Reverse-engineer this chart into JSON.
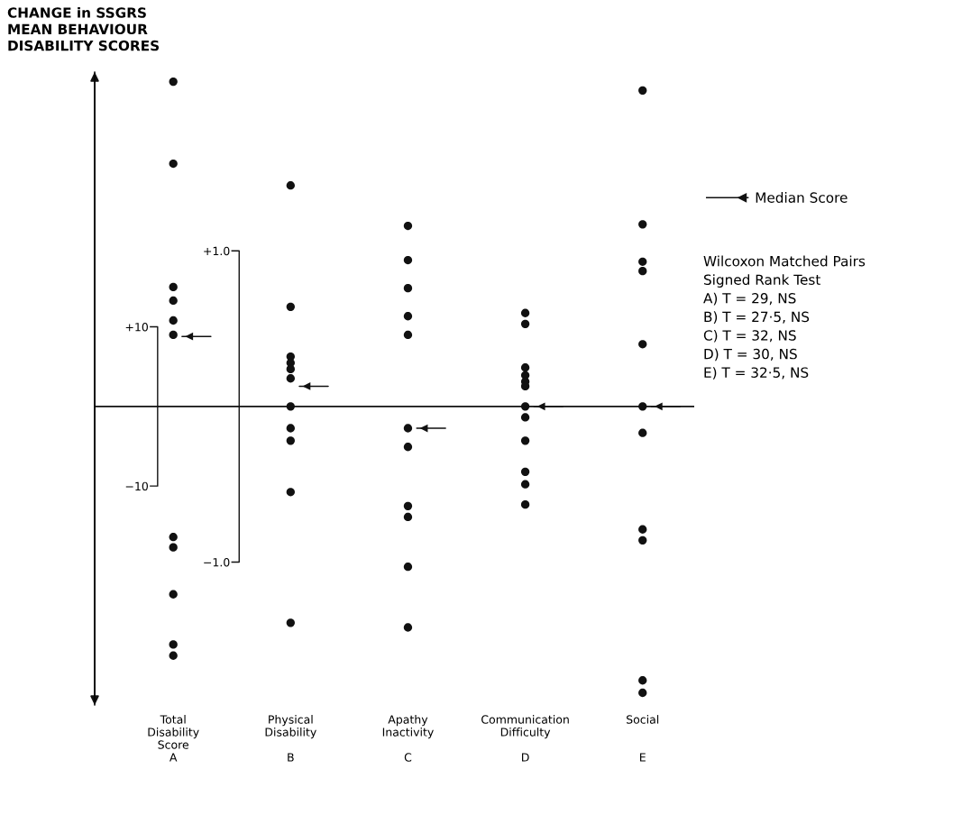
{
  "chart_data": {
    "type": "scatter",
    "ylabel": "CHANGE in SSGRS\nMEAN BEHAVIOUR\nDISABILITY SCORES",
    "categories": [
      "Total\nDisability\nScore\nA",
      "Physical\nDisability\n\nB",
      "Apathy\nInactivity\n\nC",
      "Communication\nDifficulty\n\nD",
      "Social\n\n\nE"
    ],
    "ylim": [
      -37.5,
      42
    ],
    "yticks": [
      {
        "value": 10,
        "label": "+10"
      },
      {
        "value": -10,
        "label": "−10"
      }
    ],
    "y2lim": [
      -1.918,
      2.148
    ],
    "y2ticks": [
      {
        "value": 1.0,
        "label": "+1.0"
      },
      {
        "value": -1.0,
        "label": "−1.0"
      }
    ],
    "marker": "circle",
    "legend": "top right",
    "series": [
      {
        "color": "#111111",
        "x": [
          "Total\nDisability\nScore\nA",
          "Total\nDisability\nScore\nA",
          "Total\nDisability\nScore\nA",
          "Total\nDisability\nScore\nA",
          "Total\nDisability\nScore\nA",
          "Total\nDisability\nScore\nA",
          "Total\nDisability\nScore\nA",
          "Total\nDisability\nScore\nA",
          "Total\nDisability\nScore\nA",
          "Total\nDisability\nScore\nA",
          "Total\nDisability\nScore\nA"
        ],
        "values": [
          40.8,
          30.5,
          15.0,
          13.3,
          10.8,
          9.0,
          -16.4,
          -17.7,
          -23.6,
          -29.9,
          -31.3
        ]
      },
      {
        "color": "#111111",
        "axis": "y2",
        "x": [
          "Physical\nDisability\n\nB",
          "Physical\nDisability\n\nB",
          "Physical\nDisability\n\nB",
          "Physical\nDisability\n\nB",
          "Physical\nDisability\n\nB",
          "Physical\nDisability\n\nB",
          "Physical\nDisability\n\nB",
          "Physical\nDisability\n\nB",
          "Physical\nDisability\n\nB",
          "Physical\nDisability\n\nB",
          "Physical\nDisability\n\nB"
        ],
        "values": [
          1.42,
          0.64,
          0.32,
          0.28,
          0.24,
          0.18,
          0.0,
          -0.14,
          -0.22,
          -0.55,
          -1.39
        ]
      },
      {
        "color": "#111111",
        "axis": "y2",
        "x": [
          "Apathy\nInactivity\n\nC",
          "Apathy\nInactivity\n\nC",
          "Apathy\nInactivity\n\nC",
          "Apathy\nInactivity\n\nC",
          "Apathy\nInactivity\n\nC",
          "Apathy\nInactivity\n\nC",
          "Apathy\nInactivity\n\nC",
          "Apathy\nInactivity\n\nC",
          "Apathy\nInactivity\n\nC",
          "Apathy\nInactivity\n\nC",
          "Apathy\nInactivity\n\nC"
        ],
        "values": [
          1.16,
          0.94,
          0.76,
          0.58,
          0.46,
          -0.14,
          -0.26,
          -0.64,
          -0.71,
          -1.03,
          -1.42
        ]
      },
      {
        "color": "#111111",
        "axis": "y2",
        "x": [
          "Communication\nDifficulty\n\nD",
          "Communication\nDifficulty\n\nD",
          "Communication\nDifficulty\n\nD",
          "Communication\nDifficulty\n\nD",
          "Communication\nDifficulty\n\nD",
          "Communication\nDifficulty\n\nD",
          "Communication\nDifficulty\n\nD",
          "Communication\nDifficulty\n\nD",
          "Communication\nDifficulty\n\nD",
          "Communication\nDifficulty\n\nD",
          "Communication\nDifficulty\n\nD",
          "Communication\nDifficulty\n\nD"
        ],
        "values": [
          0.6,
          0.53,
          0.25,
          0.2,
          0.16,
          0.13,
          0.0,
          -0.07,
          -0.22,
          -0.42,
          -0.5,
          -0.63
        ]
      },
      {
        "color": "#111111",
        "axis": "y2",
        "x": [
          "Social\n\n\nE",
          "Social\n\n\nE",
          "Social\n\n\nE",
          "Social\n\n\nE",
          "Social\n\n\nE",
          "Social\n\n\nE",
          "Social\n\n\nE",
          "Social\n\n\nE",
          "Social\n\n\nE",
          "Social\n\n\nE",
          "Social\n\n\nE"
        ],
        "values": [
          2.03,
          1.17,
          0.93,
          0.87,
          0.4,
          0.0,
          -0.17,
          -0.79,
          -0.86,
          -1.76,
          -1.84
        ]
      },
      {
        "color": "#111111",
        "marker": "triangle",
        "x": [
          "Total\nDisability\nScore\nA"
        ],
        "values": [
          8.8
        ]
      },
      {
        "color": "#111111",
        "marker": "triangle",
        "axis": "y2",
        "name": "Median Score",
        "x": [
          "Physical\nDisability\n\nB",
          "Apathy\nInactivity\n\nC",
          "Communication\nDifficulty\n\nD",
          "Social\n\n\nE"
        ],
        "values": [
          0.13,
          -0.14,
          0.0,
          0.0
        ]
      }
    ],
    "ref_lines": [
      {
        "axis": "y",
        "value": 0
      }
    ],
    "annotations": [
      "Wilcoxon Matched Pairs\nSigned Rank Test\nA) T = 29, NS\nB) T = 27·5, NS\nC) T = 32, NS\nD) T = 30, NS\nE) T = 32·5, NS"
    ]
  }
}
